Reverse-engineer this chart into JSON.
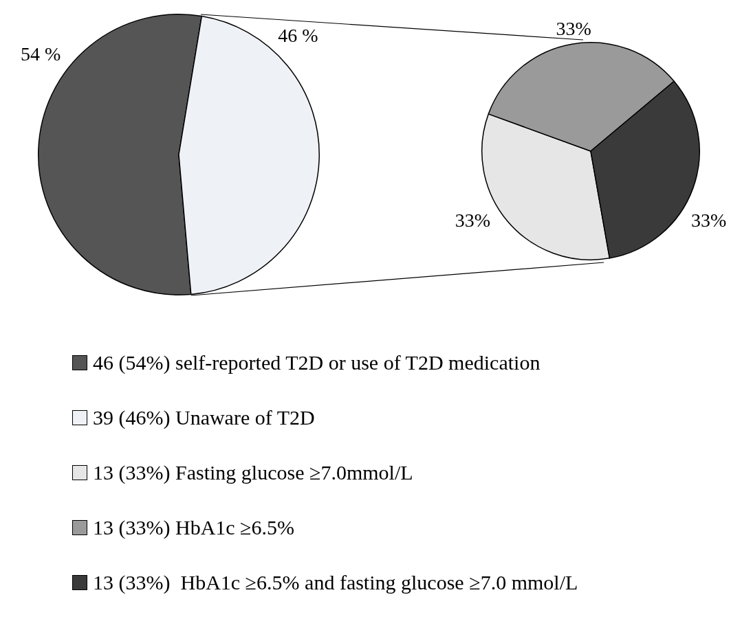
{
  "chart_data": [
    {
      "type": "pie",
      "categories": [
        "46 (54%) self-reported T2D or use of T2D medication",
        "39 (46%) Unaware of T2D"
      ],
      "values": [
        54,
        46
      ],
      "colors": [
        "#555555",
        "#eef1f6"
      ],
      "value_labels": [
        "54 %",
        "46 %"
      ],
      "legend": "bottom"
    },
    {
      "type": "pie",
      "categories": [
        "13 (33%) Fasting glucose ≥7.0mmol/L",
        "13 (33%) HbA1c ≥6.5%",
        "13 (33%)  HbA1c ≥6.5% and fasting glucose ≥7.0 mmol/L"
      ],
      "values": [
        33,
        33,
        33
      ],
      "colors": [
        "#e6e6e6",
        "#9a9a9a",
        "#3a3a3a"
      ],
      "value_labels": [
        "33%",
        "33%",
        "33%"
      ],
      "legend": "bottom"
    }
  ]
}
